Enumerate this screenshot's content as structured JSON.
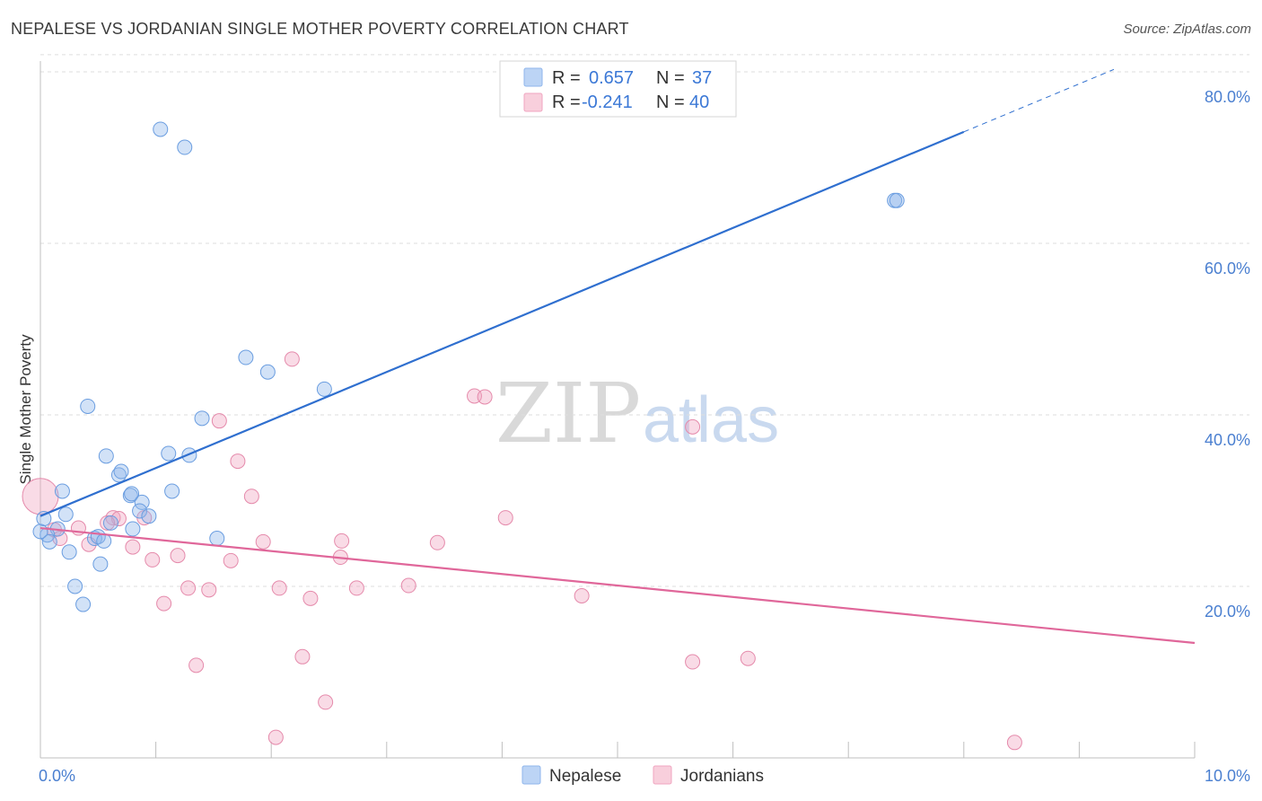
{
  "header": {
    "title": "NEPALESE VS JORDANIAN SINGLE MOTHER POVERTY CORRELATION CHART",
    "source": "Source: ZipAtlas.com"
  },
  "watermark": {
    "zip": "ZIP",
    "atlas": "atlas"
  },
  "legend": {
    "rows": [
      {
        "r_label": "R =",
        "r_value": "0.657",
        "n_label": "N =",
        "n_value": "37",
        "color": "#8fb6ec"
      },
      {
        "r_label": "R =",
        "r_value": "-0.241",
        "n_label": "N =",
        "n_value": "40",
        "color": "#f0a6c0"
      }
    ]
  },
  "bottom_legend": [
    {
      "label": "Nepalese",
      "color": "#8fb6ec"
    },
    {
      "label": "Jordanians",
      "color": "#f0a6c0"
    }
  ],
  "chart_data": {
    "type": "scatter",
    "title": "NEPALESE VS JORDANIAN SINGLE MOTHER POVERTY CORRELATION CHART",
    "xlabel": "",
    "ylabel": "Single Mother Poverty",
    "xlim": [
      0,
      10
    ],
    "ylim": [
      0,
      82
    ],
    "x_ticks": [
      {
        "value": 0,
        "label": "0.0%"
      },
      {
        "value": 10,
        "label": "10.0%"
      }
    ],
    "y_ticks": [
      {
        "value": 20,
        "label": "20.0%"
      },
      {
        "value": 40,
        "label": "40.0%"
      },
      {
        "value": 60,
        "label": "60.0%"
      },
      {
        "value": 80,
        "label": "80.0%"
      }
    ],
    "grid": "horizontal dashed",
    "legend_position": "top-center",
    "series": [
      {
        "name": "Nepalese",
        "color": "#8fb6ec",
        "stroke": "#6a9de0",
        "trend": {
          "x": [
            0,
            8
          ],
          "y": [
            28.2,
            73.0
          ],
          "color": "#2f6fcf",
          "extrapolate_to_x": 9.3
        },
        "points": [
          [
            1.04,
            73.3
          ],
          [
            1.25,
            71.2
          ],
          [
            7.4,
            65.0
          ],
          [
            7.42,
            65.0
          ],
          [
            1.78,
            46.7
          ],
          [
            1.97,
            45.0
          ],
          [
            2.46,
            43.0
          ],
          [
            0.41,
            41.0
          ],
          [
            1.4,
            39.6
          ],
          [
            0.57,
            35.2
          ],
          [
            1.11,
            35.5
          ],
          [
            1.29,
            35.3
          ],
          [
            0.68,
            33.0
          ],
          [
            0.7,
            33.4
          ],
          [
            0.78,
            30.6
          ],
          [
            0.79,
            30.8
          ],
          [
            1.14,
            31.1
          ],
          [
            0.19,
            31.1
          ],
          [
            0.88,
            29.8
          ],
          [
            0.86,
            28.8
          ],
          [
            0.94,
            28.2
          ],
          [
            0.22,
            28.4
          ],
          [
            0.03,
            27.9
          ],
          [
            0.15,
            26.7
          ],
          [
            0.61,
            27.4
          ],
          [
            0.8,
            26.7
          ],
          [
            0.06,
            26.0
          ],
          [
            0.47,
            25.6
          ],
          [
            0.5,
            25.8
          ],
          [
            0.55,
            25.3
          ],
          [
            0.08,
            25.2
          ],
          [
            1.53,
            25.6
          ],
          [
            0.25,
            24.0
          ],
          [
            0.52,
            22.6
          ],
          [
            0.3,
            20.0
          ],
          [
            0.37,
            17.9
          ],
          [
            0.0,
            26.4
          ]
        ]
      },
      {
        "name": "Jordanians",
        "color": "#f0a6c0",
        "stroke": "#e58aab",
        "trend": {
          "x": [
            0,
            10
          ],
          "y": [
            26.8,
            13.4
          ],
          "color": "#e0679a"
        },
        "points": [
          [
            0.0,
            30.5
          ],
          [
            2.18,
            46.5
          ],
          [
            3.76,
            42.2
          ],
          [
            3.85,
            42.1
          ],
          [
            5.65,
            38.6
          ],
          [
            1.55,
            39.3
          ],
          [
            1.71,
            34.6
          ],
          [
            1.83,
            30.5
          ],
          [
            4.03,
            28.0
          ],
          [
            0.9,
            28.0
          ],
          [
            0.63,
            28.0
          ],
          [
            0.68,
            27.9
          ],
          [
            0.58,
            27.4
          ],
          [
            0.33,
            26.8
          ],
          [
            0.12,
            26.6
          ],
          [
            0.17,
            25.6
          ],
          [
            0.42,
            24.9
          ],
          [
            0.8,
            24.6
          ],
          [
            1.93,
            25.2
          ],
          [
            2.61,
            25.3
          ],
          [
            3.44,
            25.1
          ],
          [
            1.19,
            23.6
          ],
          [
            0.97,
            23.1
          ],
          [
            1.65,
            23.0
          ],
          [
            2.6,
            23.4
          ],
          [
            1.28,
            19.8
          ],
          [
            1.46,
            19.6
          ],
          [
            2.07,
            19.8
          ],
          [
            2.74,
            19.8
          ],
          [
            3.19,
            20.1
          ],
          [
            2.34,
            18.6
          ],
          [
            4.69,
            18.9
          ],
          [
            1.07,
            18.0
          ],
          [
            2.27,
            11.8
          ],
          [
            5.65,
            11.2
          ],
          [
            6.13,
            11.6
          ],
          [
            1.35,
            10.8
          ],
          [
            2.47,
            6.5
          ],
          [
            2.04,
            2.4
          ],
          [
            8.44,
            1.8
          ]
        ]
      }
    ]
  }
}
